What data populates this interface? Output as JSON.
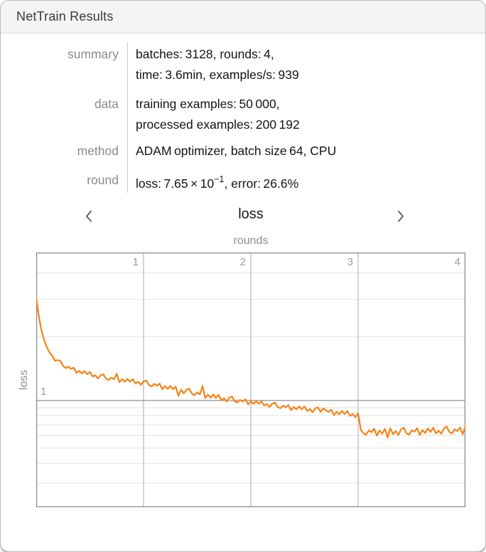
{
  "window": {
    "title": "NetTrain Results"
  },
  "info_rows": [
    {
      "label": "summary",
      "lines": [
        "batches: 3128,  rounds: 4,",
        "time: 3.6min,  examples/s: 939"
      ]
    },
    {
      "label": "data",
      "lines": [
        "training examples: 50 000,",
        "processed examples: 200 192"
      ]
    },
    {
      "label": "method",
      "lines": [
        "ADAM optimizer,  batch size 64,  CPU"
      ]
    },
    {
      "label": "round",
      "parts": {
        "pre": "loss: 7.65 × 10",
        "sup": "−1",
        "post": ",  error: 26.6%"
      }
    }
  ],
  "pager": {
    "title": "loss",
    "prev_icon": "chevron-left-icon",
    "next_icon": "chevron-right-icon"
  },
  "chart_data": {
    "type": "line",
    "title": "loss",
    "top_axis_label": "rounds",
    "ylabel": "loss",
    "x_ticks": [
      "1",
      "2",
      "3",
      "4"
    ],
    "y_tick_label": "1",
    "x_range": [
      0,
      4
    ],
    "y_scale": "log",
    "y_major_gridlines": [
      1
    ],
    "y_minor_gridlines": [
      4,
      3,
      2,
      0.9,
      0.8,
      0.7,
      0.6,
      0.5,
      0.4,
      0.3
    ],
    "grid_color_minor": "#e3e3e3",
    "grid_color_major": "#8f8f8f",
    "grid_color_vertical": "#a8a8a8",
    "frame_color": "#868686",
    "series": [
      {
        "name": "loss",
        "color": "#f6861d",
        "x_start": 0,
        "x_step": 0.025,
        "values": [
          3.05,
          2.48,
          2.12,
          1.92,
          1.78,
          1.68,
          1.625,
          1.54,
          1.55,
          1.538,
          1.455,
          1.422,
          1.442,
          1.41,
          1.428,
          1.35,
          1.38,
          1.342,
          1.375,
          1.332,
          1.362,
          1.298,
          1.315,
          1.27,
          1.315,
          1.327,
          1.268,
          1.248,
          1.282,
          1.26,
          1.338,
          1.22,
          1.26,
          1.227,
          1.265,
          1.227,
          1.262,
          1.203,
          1.225,
          1.185,
          1.23,
          1.242,
          1.183,
          1.163,
          1.197,
          1.174,
          1.201,
          1.131,
          1.17,
          1.134,
          1.17,
          1.129,
          1.162,
          1.052,
          1.123,
          1.081,
          1.125,
          1.137,
          1.078,
          1.058,
          1.092,
          1.069,
          1.171,
          1.026,
          1.065,
          1.031,
          1.068,
          1.028,
          1.062,
          1.003,
          1.025,
          0.985,
          1.03,
          1.044,
          0.987,
          0.971,
          1.007,
          0.985,
          1.013,
          0.945,
          0.985,
          0.952,
          0.99,
          0.952,
          0.987,
          0.928,
          0.95,
          0.91,
          0.955,
          0.968,
          0.91,
          0.892,
          0.927,
          0.906,
          0.935,
          0.868,
          0.91,
          0.878,
          0.917,
          0.88,
          0.917,
          0.859,
          0.882,
          0.843,
          0.89,
          0.904,
          0.847,
          0.89,
          0.867,
          0.846,
          0.875,
          0.808,
          0.85,
          0.818,
          0.857,
          0.82,
          0.857,
          0.799,
          0.822,
          0.783,
          0.83,
          0.652,
          0.62,
          0.607,
          0.647,
          0.63,
          0.663,
          0.6,
          0.645,
          0.617,
          0.66,
          0.582,
          0.667,
          0.613,
          0.64,
          0.605,
          0.655,
          0.673,
          0.62,
          0.607,
          0.647,
          0.635,
          0.668,
          0.605,
          0.65,
          0.622,
          0.665,
          0.632,
          0.672,
          0.618,
          0.645,
          0.616,
          0.666,
          0.684,
          0.631,
          0.618,
          0.658,
          0.641,
          0.674,
          0.611,
          0.686
        ]
      }
    ]
  }
}
